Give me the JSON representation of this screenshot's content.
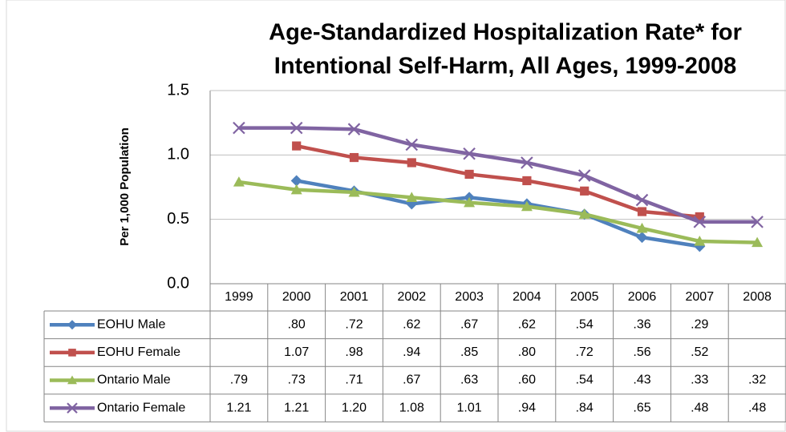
{
  "chart_data": {
    "type": "line",
    "title": [
      "Age-Standardized Hospitalization Rate* for",
      "Intentional Self-Harm, All Ages, 1999-2008"
    ],
    "ylabel": "Per 1,000 Population",
    "categories": [
      "1999",
      "2000",
      "2001",
      "2002",
      "2003",
      "2004",
      "2005",
      "2006",
      "2007",
      "2008"
    ],
    "series": [
      {
        "name": "EOHU Male",
        "color": "#4f81bd",
        "marker": "diamond",
        "values": [
          null,
          0.8,
          0.72,
          0.62,
          0.67,
          0.62,
          0.54,
          0.36,
          0.29,
          null
        ],
        "value_labels": [
          null,
          ".80",
          ".72",
          ".62",
          ".67",
          ".62",
          ".54",
          ".36",
          ".29",
          null
        ]
      },
      {
        "name": "EOHU Female",
        "color": "#c0504d",
        "marker": "square",
        "values": [
          null,
          1.07,
          0.98,
          0.94,
          0.85,
          0.8,
          0.72,
          0.56,
          0.52,
          null
        ],
        "value_labels": [
          null,
          "1.07",
          ".98",
          ".94",
          ".85",
          ".80",
          ".72",
          ".56",
          ".52",
          null
        ]
      },
      {
        "name": "Ontario Male",
        "color": "#9bbb59",
        "marker": "triangle",
        "values": [
          0.79,
          0.73,
          0.71,
          0.67,
          0.63,
          0.6,
          0.54,
          0.43,
          0.33,
          0.32
        ],
        "value_labels": [
          ".79",
          ".73",
          ".71",
          ".67",
          ".63",
          ".60",
          ".54",
          ".43",
          ".33",
          ".32"
        ]
      },
      {
        "name": "Ontario Female",
        "color": "#8064a2",
        "marker": "x",
        "values": [
          1.21,
          1.21,
          1.2,
          1.08,
          1.01,
          0.94,
          0.84,
          0.65,
          0.48,
          0.48
        ],
        "value_labels": [
          "1.21",
          "1.21",
          "1.20",
          "1.08",
          "1.01",
          ".94",
          ".84",
          ".65",
          ".48",
          ".48"
        ]
      }
    ],
    "ylim": [
      0,
      1.5
    ],
    "yticks": [
      {
        "value": 0,
        "label": "0.0"
      },
      {
        "value": 0.5,
        "label": "0.5"
      },
      {
        "value": 1,
        "label": "1.0"
      },
      1.5
    ],
    "grid": true
  }
}
